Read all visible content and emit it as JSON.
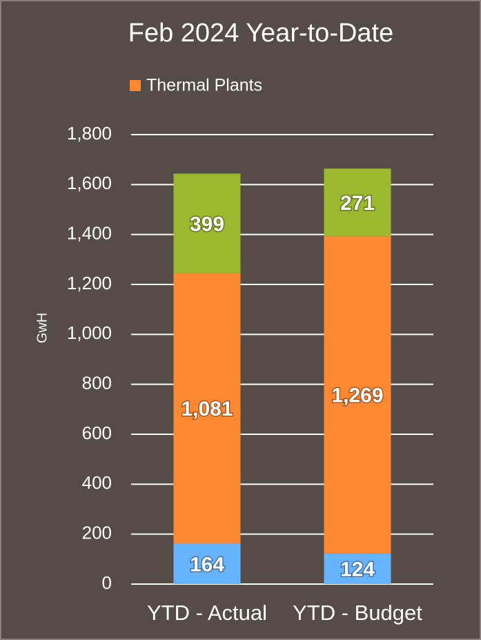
{
  "chart_data": {
    "type": "stacked_bar",
    "title": "Feb 2024 Year-to-Date",
    "y_label": "GwH",
    "categories": [
      "YTD - Actual",
      "YTD - Budget"
    ],
    "series": [
      {
        "color": "#66b3ff",
        "values": [
          164,
          124
        ]
      },
      {
        "name": "Thermal Plants",
        "color": "#ff8833",
        "values": [
          1081,
          1269
        ],
        "value_labels": [
          "1,081",
          "1,269"
        ]
      },
      {
        "color": "#9ab92e",
        "values": [
          399,
          271
        ]
      }
    ],
    "ylim": [
      0,
      1800
    ],
    "yticks": [
      0,
      200,
      400,
      600,
      800,
      {
        "value": 1000,
        "label": "1,000"
      },
      {
        "value": 1200,
        "label": "1,200"
      },
      {
        "value": 1400,
        "label": "1,400"
      },
      {
        "value": 1600,
        "label": "1,600"
      },
      {
        "value": 1800,
        "label": "1,800"
      }
    ],
    "grid": true,
    "legend": "top"
  }
}
